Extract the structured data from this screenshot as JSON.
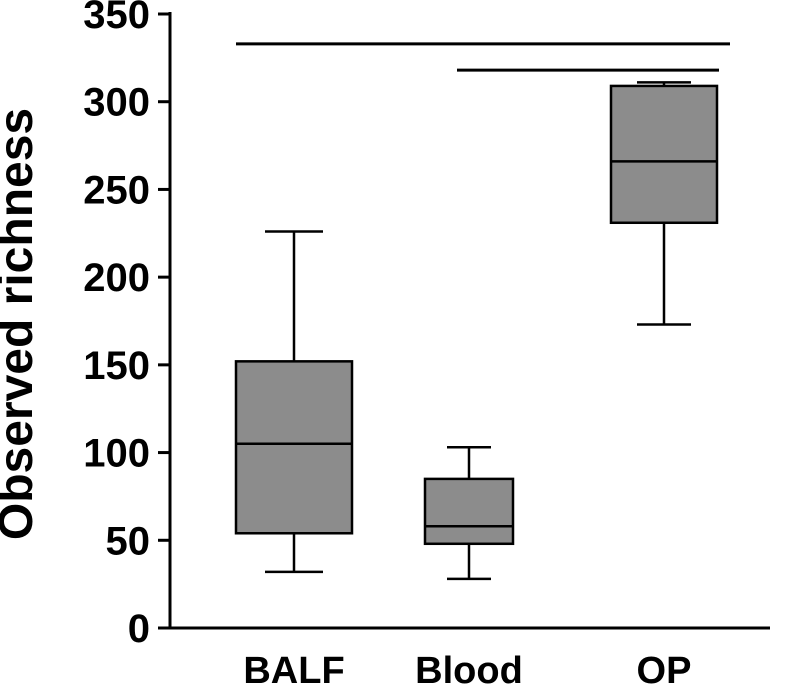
{
  "figure": {
    "background": "#ffffff"
  },
  "chart_data": {
    "type": "boxplot",
    "title": "",
    "ylabel": "Observed richness",
    "xlabel": "",
    "ylim": [
      0,
      350
    ],
    "yticks": [
      0,
      50,
      100,
      150,
      200,
      250,
      300,
      350
    ],
    "categories": [
      "BALF",
      "Blood",
      "OP"
    ],
    "series": [
      {
        "name": "BALF",
        "whisker_low": 32,
        "q1": 54,
        "median": 105,
        "q3": 152,
        "whisker_high": 226
      },
      {
        "name": "Blood",
        "whisker_low": 28,
        "q1": 48,
        "median": 58,
        "q3": 85,
        "whisker_high": 103
      },
      {
        "name": "OP",
        "whisker_low": 173,
        "q1": 231,
        "median": 266,
        "q3": 309,
        "whisker_high": 311
      }
    ],
    "significance_lines": [
      {
        "from": "BALF",
        "to": "OP",
        "y_value": 333
      },
      {
        "from": "Blood",
        "to": "OP",
        "y_value": 318
      }
    ],
    "legend": "none",
    "grid": false,
    "box_fill": "#8c8c8c",
    "line_color": "#000000"
  }
}
